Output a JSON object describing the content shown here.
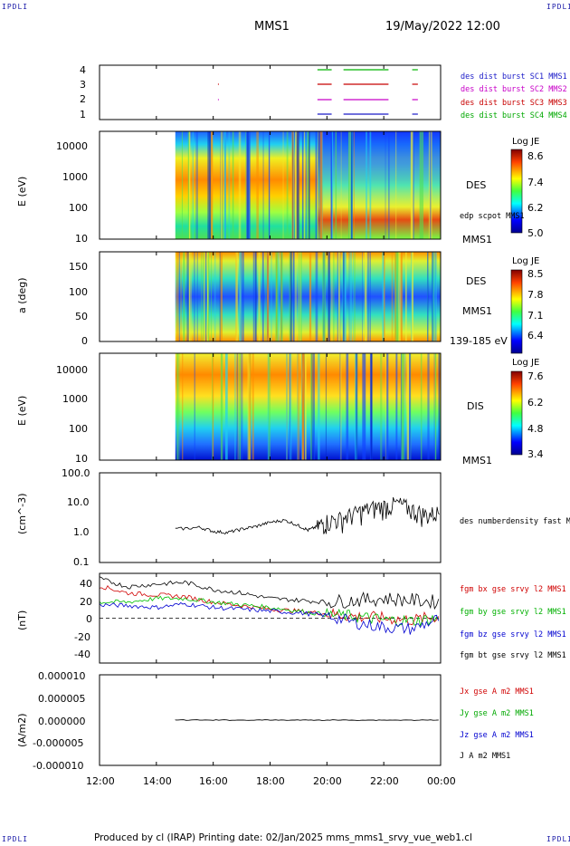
{
  "corner_labels": {
    "top_left": "IPDLI",
    "top_right": "IPDLI",
    "bottom_left": "IPDLI",
    "bottom_right": "IPDLI"
  },
  "header": {
    "spacecraft": "MMS1",
    "datetime": "19/May/2022 12:00"
  },
  "footer": {
    "text": "Produced by cl (IRAP)   Printing date: 02/Jan/2025   mms_mms1_srvy_vue_web1.cl"
  },
  "colors": {
    "sc1": "#1a1ac8",
    "sc2": "#c800c8",
    "sc3": "#c80000",
    "sc4": "#00b400",
    "bx": "#d00000",
    "by": "#00c000",
    "bz": "#0000d0",
    "bt": "#000000"
  },
  "chart_data": [
    {
      "id": "burst_availability",
      "type": "timeline",
      "xlim": [
        "12:00",
        "00:00"
      ],
      "y_ticks": [
        "4",
        "3",
        "2",
        "1"
      ],
      "legend": [
        "des dist burst SC1 MMS1",
        "des dist burst SC2 MMS2",
        "des dist burst SC3 MMS3",
        "des dist burst SC4 MMS4"
      ],
      "intervals": [
        {
          "sc": 4,
          "spans": [
            [
              "19:40",
              "20:10"
            ],
            [
              "20:35",
              "22:10"
            ],
            [
              "23:00",
              "23:12"
            ]
          ]
        },
        {
          "sc": 3,
          "spans": [
            [
              "16:10",
              "16:12"
            ],
            [
              "19:40",
              "20:10"
            ],
            [
              "20:35",
              "22:10"
            ],
            [
              "23:00",
              "23:12"
            ]
          ]
        },
        {
          "sc": 2,
          "spans": [
            [
              "16:10",
              "16:12"
            ],
            [
              "19:40",
              "20:10"
            ],
            [
              "20:35",
              "22:10"
            ],
            [
              "23:00",
              "23:12"
            ]
          ]
        },
        {
          "sc": 1,
          "spans": [
            [
              "19:40",
              "20:10"
            ],
            [
              "20:35",
              "22:10"
            ],
            [
              "23:00",
              "23:12"
            ]
          ]
        }
      ]
    },
    {
      "id": "des_energy_spectrogram",
      "type": "heatmap",
      "ylabel": "E (eV)",
      "y_ticks": [
        "10000",
        "1000",
        "100",
        "10"
      ],
      "data_start": "14:40",
      "label": "DES",
      "overlay_label": "edp scpot MMS1",
      "sc_label": "MMS1",
      "colorbar": {
        "title": "Log JE",
        "ticks": [
          "8.6",
          "7.4",
          "6.2",
          "5.0"
        ]
      }
    },
    {
      "id": "des_pitch_angle",
      "type": "heatmap",
      "ylabel": "a (deg)",
      "y_ticks": [
        "150",
        "100",
        "50",
        "0"
      ],
      "data_start": "14:40",
      "label": "DES",
      "sc_label": "MMS1",
      "energy_range": "139-185 eV",
      "colorbar": {
        "title": "Log JE",
        "ticks": [
          "8.5",
          "7.8",
          "7.1",
          "6.4"
        ]
      }
    },
    {
      "id": "dis_energy_spectrogram",
      "type": "heatmap",
      "ylabel": "E (eV)",
      "y_ticks": [
        "10000",
        "1000",
        "100",
        "10"
      ],
      "data_start": "14:40",
      "label": "DIS",
      "sc_label": "MMS1",
      "colorbar": {
        "title": "Log JE",
        "ticks": [
          "7.6",
          "6.2",
          "4.8",
          "3.4"
        ]
      }
    },
    {
      "id": "electron_density",
      "type": "line",
      "ylabel": "(cm^-3)",
      "y_ticks": [
        "100.0",
        "10.0",
        "1.0",
        "0.1"
      ],
      "ylim": [
        0.1,
        100
      ],
      "yscale": "log",
      "legend": [
        "des numberdensity fast M"
      ],
      "series": [
        {
          "x": [
            "14:40",
            "15:30",
            "16:00",
            "16:30",
            "17:00",
            "17:30",
            "18:00",
            "18:30",
            "19:00",
            "19:20",
            "19:40",
            "20:00",
            "20:30",
            "21:00",
            "21:30",
            "22:00",
            "22:30",
            "23:00",
            "23:30",
            "00:00"
          ],
          "values": [
            1.3,
            1.5,
            1.1,
            1.0,
            1.3,
            1.6,
            2.2,
            2.6,
            1.7,
            1.2,
            1.6,
            2.5,
            3.0,
            4.5,
            6.5,
            8.0,
            9.5,
            6.0,
            4.0,
            5.0
          ]
        }
      ]
    },
    {
      "id": "magnetic_field",
      "type": "line",
      "ylabel": "(nT)",
      "y_ticks": [
        "40",
        "20",
        "0",
        "-20",
        "-40"
      ],
      "ylim": [
        -50,
        50
      ],
      "legend": [
        "fgm bx gse srvy l2 MMS1",
        "fgm by gse srvy l2 MMS1",
        "fgm bz gse srvy l2 MMS1",
        "fgm bt gse srvy l2 MMS1"
      ],
      "x": [
        "12:00",
        "13:00",
        "14:00",
        "15:00",
        "16:00",
        "17:00",
        "18:00",
        "19:00",
        "20:00",
        "21:00",
        "22:00",
        "23:00",
        "00:00"
      ],
      "series": [
        {
          "values": [
            36,
            28,
            26,
            24,
            18,
            14,
            10,
            8,
            5,
            2,
            0,
            -2,
            2
          ]
        },
        {
          "values": [
            18,
            18,
            22,
            22,
            18,
            15,
            12,
            8,
            4,
            2,
            -2,
            -3,
            0
          ]
        },
        {
          "values": [
            15,
            14,
            12,
            16,
            12,
            10,
            8,
            6,
            3,
            -5,
            -10,
            -12,
            0
          ]
        },
        {
          "values": [
            44,
            35,
            38,
            40,
            32,
            28,
            22,
            20,
            18,
            20,
            22,
            20,
            18
          ]
        }
      ]
    },
    {
      "id": "current_density",
      "type": "line",
      "ylabel": "(A/m2)",
      "y_ticks": [
        "0.000010",
        "0.000005",
        "0.000000",
        "-0.000005",
        "-0.000010"
      ],
      "ylim": [
        -1e-05,
        1e-05
      ],
      "legend": [
        "Jx gse A m2 MMS1",
        "Jy gse A m2 MMS1",
        "Jz gse A m2 MMS1",
        "J A m2 MMS1"
      ]
    }
  ],
  "time_axis": {
    "ticks": [
      "12:00",
      "14:00",
      "16:00",
      "18:00",
      "20:00",
      "22:00",
      "00:00"
    ]
  }
}
